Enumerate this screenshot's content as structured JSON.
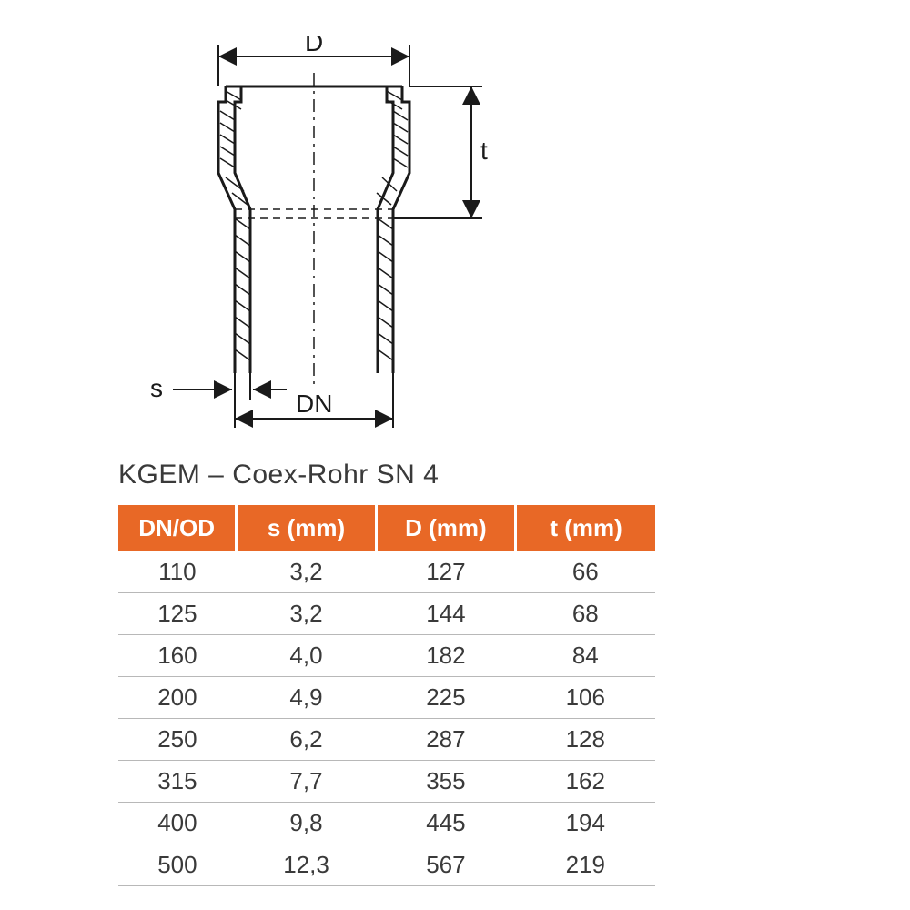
{
  "diagram": {
    "labels": {
      "D": "D",
      "t": "t",
      "s": "s",
      "DN": "DN"
    },
    "stroke_color": "#1a1a1a",
    "stroke_width_main": 3,
    "stroke_width_dim": 2
  },
  "title": "KGEM – Coex-Rohr SN 4",
  "table": {
    "header_bg": "#e86826",
    "header_fg": "#ffffff",
    "cell_fg": "#3a3a3a",
    "border_color": "#b8b8b8",
    "columns": [
      "DN/OD",
      "s (mm)",
      "D (mm)",
      "t (mm)"
    ],
    "col_widths_pct": [
      22,
      26,
      26,
      26
    ],
    "rows": [
      [
        "110",
        "3,2",
        "127",
        "66"
      ],
      [
        "125",
        "3,2",
        "144",
        "68"
      ],
      [
        "160",
        "4,0",
        "182",
        "84"
      ],
      [
        "200",
        "4,9",
        "225",
        "106"
      ],
      [
        "250",
        "6,2",
        "287",
        "128"
      ],
      [
        "315",
        "7,7",
        "355",
        "162"
      ],
      [
        "400",
        "9,8",
        "445",
        "194"
      ],
      [
        "500",
        "12,3",
        "567",
        "219"
      ]
    ]
  }
}
